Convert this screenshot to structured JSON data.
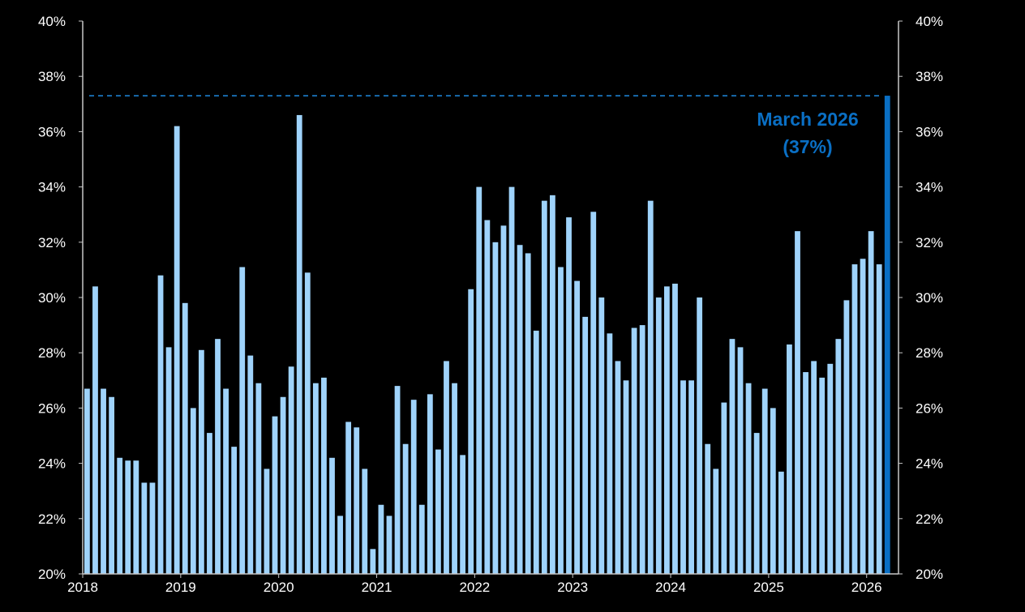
{
  "chart_data": {
    "type": "bar",
    "ylim": [
      20,
      40
    ],
    "yticks": [
      20,
      22,
      24,
      26,
      28,
      30,
      32,
      34,
      36,
      38,
      40
    ],
    "ytick_suffix": "%",
    "x_year_labels": [
      "2018",
      "2019",
      "2020",
      "2021",
      "2022",
      "2023",
      "2024",
      "2025",
      "2026"
    ],
    "x_start": "2018-01",
    "grid": false,
    "colors": {
      "bars": "#9fd3fb",
      "highlight": "#0a6fc4",
      "reference_line": "#1f8ae0",
      "background": "#000000",
      "text": "#ffffff"
    },
    "values": [
      26.7,
      30.4,
      26.7,
      26.4,
      24.2,
      24.1,
      24.1,
      23.3,
      23.3,
      30.8,
      28.2,
      36.2,
      29.8,
      26.0,
      28.1,
      25.1,
      28.5,
      26.7,
      24.6,
      31.1,
      27.9,
      26.9,
      23.8,
      25.7,
      26.4,
      27.5,
      36.6,
      30.9,
      26.9,
      27.1,
      24.2,
      22.1,
      25.5,
      25.3,
      23.8,
      20.9,
      22.5,
      22.1,
      26.8,
      24.7,
      26.3,
      22.5,
      26.5,
      24.5,
      27.7,
      26.9,
      24.3,
      30.3,
      34.0,
      32.8,
      32.0,
      32.6,
      34.0,
      31.9,
      31.6,
      28.8,
      33.5,
      33.7,
      31.1,
      32.9,
      30.6,
      29.3,
      33.1,
      30.0,
      28.7,
      27.7,
      27.0,
      28.9,
      29.0,
      33.5,
      30.0,
      30.4,
      30.5,
      27.0,
      27.0,
      30.0,
      24.7,
      23.8,
      26.2,
      28.5,
      28.2,
      26.9,
      25.1,
      26.7,
      26.0,
      23.7,
      28.3,
      32.4,
      27.3,
      27.7,
      27.1,
      27.6,
      28.5,
      29.9,
      31.2,
      31.4,
      32.4,
      31.2,
      37.3
    ],
    "highlight": {
      "label_line1": "March 2026",
      "label_line2": "(37%)",
      "value": 37.3
    },
    "reference_line_value": 37.3
  }
}
